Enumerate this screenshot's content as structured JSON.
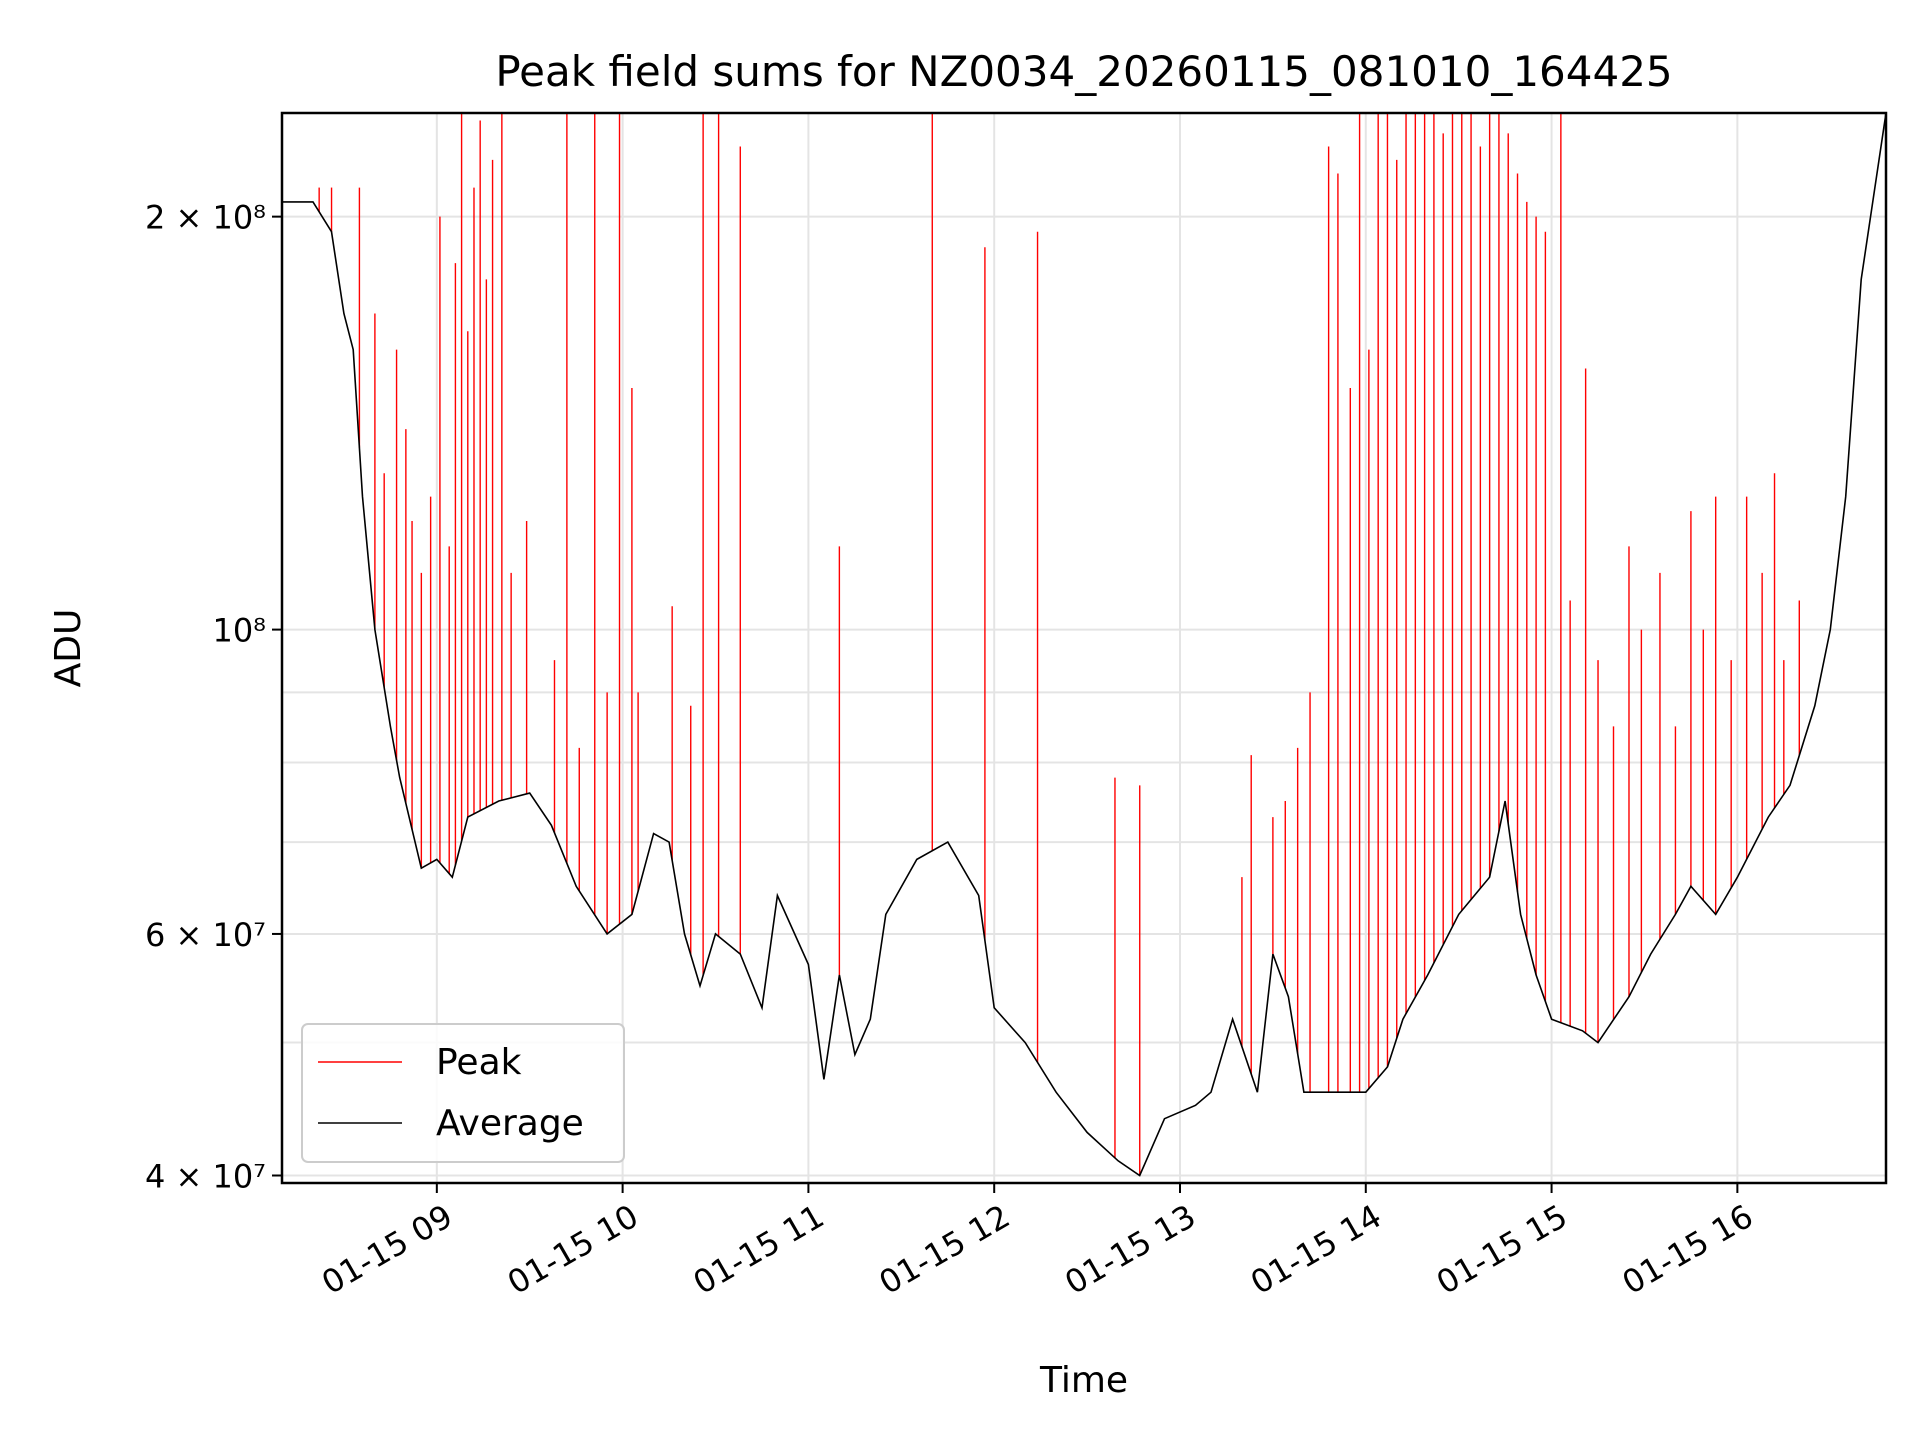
{
  "chart_data": {
    "type": "line",
    "title": "Peak field sums for NZ0034_20260115_081010_164425",
    "xlabel": "Time",
    "ylabel": "ADU",
    "y_scale": "log",
    "xlim": [
      "2026-01-15 08:10",
      "2026-01-15 16:48"
    ],
    "ylim": [
      39500000,
      238000000
    ],
    "grid": true,
    "legend_position": "lower-left",
    "x_ticks": [
      {
        "t": "2026-01-15 09:00",
        "label": "01-15 09"
      },
      {
        "t": "2026-01-15 10:00",
        "label": "01-15 10"
      },
      {
        "t": "2026-01-15 11:00",
        "label": "01-15 11"
      },
      {
        "t": "2026-01-15 12:00",
        "label": "01-15 12"
      },
      {
        "t": "2026-01-15 13:00",
        "label": "01-15 13"
      },
      {
        "t": "2026-01-15 14:00",
        "label": "01-15 14"
      },
      {
        "t": "2026-01-15 15:00",
        "label": "01-15 15"
      },
      {
        "t": "2026-01-15 16:00",
        "label": "01-15 16"
      }
    ],
    "y_ticks": [
      {
        "value": 40000000,
        "label": "4 × 10⁷"
      },
      {
        "value": 60000000,
        "label": "6 × 10⁷"
      },
      {
        "value": 100000000,
        "label": "10⁸"
      },
      {
        "value": 200000000,
        "label": "2 × 10⁸"
      }
    ],
    "y_minor_grid": [
      50000000,
      70000000,
      80000000,
      90000000
    ],
    "series": [
      {
        "name": "Average",
        "color": "#000000",
        "x": [
          "2026-01-15 08:10",
          "2026-01-15 08:20",
          "2026-01-15 08:26",
          "2026-01-15 08:30",
          "2026-01-15 08:33",
          "2026-01-15 08:36",
          "2026-01-15 08:40",
          "2026-01-15 08:45",
          "2026-01-15 08:48",
          "2026-01-15 08:55",
          "2026-01-15 09:00",
          "2026-01-15 09:05",
          "2026-01-15 09:10",
          "2026-01-15 09:20",
          "2026-01-15 09:30",
          "2026-01-15 09:37",
          "2026-01-15 09:45",
          "2026-01-15 09:55",
          "2026-01-15 10:03",
          "2026-01-15 10:10",
          "2026-01-15 10:15",
          "2026-01-15 10:20",
          "2026-01-15 10:25",
          "2026-01-15 10:30",
          "2026-01-15 10:38",
          "2026-01-15 10:45",
          "2026-01-15 10:50",
          "2026-01-15 11:00",
          "2026-01-15 11:05",
          "2026-01-15 11:10",
          "2026-01-15 11:15",
          "2026-01-15 11:20",
          "2026-01-15 11:25",
          "2026-01-15 11:35",
          "2026-01-15 11:45",
          "2026-01-15 11:55",
          "2026-01-15 12:00",
          "2026-01-15 12:10",
          "2026-01-15 12:20",
          "2026-01-15 12:30",
          "2026-01-15 12:40",
          "2026-01-15 12:47",
          "2026-01-15 12:55",
          "2026-01-15 13:05",
          "2026-01-15 13:10",
          "2026-01-15 13:17",
          "2026-01-15 13:25",
          "2026-01-15 13:30",
          "2026-01-15 13:35",
          "2026-01-15 13:40",
          "2026-01-15 13:50",
          "2026-01-15 14:00",
          "2026-01-15 14:07",
          "2026-01-15 14:12",
          "2026-01-15 14:20",
          "2026-01-15 14:30",
          "2026-01-15 14:40",
          "2026-01-15 14:45",
          "2026-01-15 14:50",
          "2026-01-15 14:55",
          "2026-01-15 15:00",
          "2026-01-15 15:10",
          "2026-01-15 15:15",
          "2026-01-15 15:25",
          "2026-01-15 15:32",
          "2026-01-15 15:40",
          "2026-01-15 15:45",
          "2026-01-15 15:53",
          "2026-01-15 16:00",
          "2026-01-15 16:10",
          "2026-01-15 16:17",
          "2026-01-15 16:25",
          "2026-01-15 16:30",
          "2026-01-15 16:35",
          "2026-01-15 16:40",
          "2026-01-15 16:48"
        ],
        "y": [
          205000000,
          205000000,
          195000000,
          170000000,
          160000000,
          125000000,
          100000000,
          85000000,
          78000000,
          67000000,
          68000000,
          66000000,
          73000000,
          75000000,
          76000000,
          72000000,
          65000000,
          60000000,
          62000000,
          71000000,
          70000000,
          60000000,
          55000000,
          60000000,
          58000000,
          53000000,
          64000000,
          57000000,
          47000000,
          56000000,
          49000000,
          52000000,
          62000000,
          68000000,
          70000000,
          64000000,
          53000000,
          50000000,
          46000000,
          43000000,
          41000000,
          40000000,
          44000000,
          45000000,
          46000000,
          52000000,
          46000000,
          58000000,
          54000000,
          46000000,
          46000000,
          46000000,
          48000000,
          52000000,
          56000000,
          62000000,
          66000000,
          75000000,
          62000000,
          56000000,
          52000000,
          51000000,
          50000000,
          54000000,
          58000000,
          62000000,
          65000000,
          62000000,
          66000000,
          73000000,
          77000000,
          88000000,
          100000000,
          125000000,
          180000000,
          238000000
        ]
      },
      {
        "name": "Peak",
        "color": "#ff0000",
        "spikes": [
          {
            "t": "2026-01-15 08:22",
            "y": 210000000
          },
          {
            "t": "2026-01-15 08:26",
            "y": 210000000
          },
          {
            "t": "2026-01-15 08:35",
            "y": 210000000
          },
          {
            "t": "2026-01-15 08:40",
            "y": 170000000
          },
          {
            "t": "2026-01-15 08:43",
            "y": 130000000
          },
          {
            "t": "2026-01-15 08:47",
            "y": 160000000
          },
          {
            "t": "2026-01-15 08:50",
            "y": 140000000
          },
          {
            "t": "2026-01-15 08:52",
            "y": 120000000
          },
          {
            "t": "2026-01-15 08:55",
            "y": 110000000
          },
          {
            "t": "2026-01-15 08:58",
            "y": 125000000
          },
          {
            "t": "2026-01-15 09:01",
            "y": 200000000
          },
          {
            "t": "2026-01-15 09:04",
            "y": 115000000
          },
          {
            "t": "2026-01-15 09:06",
            "y": 185000000
          },
          {
            "t": "2026-01-15 09:08",
            "y": 238000000
          },
          {
            "t": "2026-01-15 09:10",
            "y": 165000000
          },
          {
            "t": "2026-01-15 09:12",
            "y": 210000000
          },
          {
            "t": "2026-01-15 09:14",
            "y": 235000000
          },
          {
            "t": "2026-01-15 09:16",
            "y": 180000000
          },
          {
            "t": "2026-01-15 09:18",
            "y": 220000000
          },
          {
            "t": "2026-01-15 09:21",
            "y": 238000000
          },
          {
            "t": "2026-01-15 09:24",
            "y": 110000000
          },
          {
            "t": "2026-01-15 09:29",
            "y": 120000000
          },
          {
            "t": "2026-01-15 09:38",
            "y": 95000000
          },
          {
            "t": "2026-01-15 09:42",
            "y": 238000000
          },
          {
            "t": "2026-01-15 09:46",
            "y": 82000000
          },
          {
            "t": "2026-01-15 09:51",
            "y": 238000000
          },
          {
            "t": "2026-01-15 09:55",
            "y": 90000000
          },
          {
            "t": "2026-01-15 09:59",
            "y": 238000000
          },
          {
            "t": "2026-01-15 10:03",
            "y": 150000000
          },
          {
            "t": "2026-01-15 10:05",
            "y": 90000000
          },
          {
            "t": "2026-01-15 10:16",
            "y": 104000000
          },
          {
            "t": "2026-01-15 10:22",
            "y": 88000000
          },
          {
            "t": "2026-01-15 10:26",
            "y": 238000000
          },
          {
            "t": "2026-01-15 10:31",
            "y": 238000000
          },
          {
            "t": "2026-01-15 10:38",
            "y": 225000000
          },
          {
            "t": "2026-01-15 11:10",
            "y": 115000000
          },
          {
            "t": "2026-01-15 11:40",
            "y": 238000000
          },
          {
            "t": "2026-01-15 11:57",
            "y": 190000000
          },
          {
            "t": "2026-01-15 12:14",
            "y": 195000000
          },
          {
            "t": "2026-01-15 12:39",
            "y": 78000000
          },
          {
            "t": "2026-01-15 12:47",
            "y": 77000000
          },
          {
            "t": "2026-01-15 13:20",
            "y": 66000000
          },
          {
            "t": "2026-01-15 13:23",
            "y": 81000000
          },
          {
            "t": "2026-01-15 13:30",
            "y": 73000000
          },
          {
            "t": "2026-01-15 13:34",
            "y": 75000000
          },
          {
            "t": "2026-01-15 13:38",
            "y": 82000000
          },
          {
            "t": "2026-01-15 13:42",
            "y": 90000000
          },
          {
            "t": "2026-01-15 13:48",
            "y": 225000000
          },
          {
            "t": "2026-01-15 13:51",
            "y": 215000000
          },
          {
            "t": "2026-01-15 13:55",
            "y": 150000000
          },
          {
            "t": "2026-01-15 13:58",
            "y": 238000000
          },
          {
            "t": "2026-01-15 14:01",
            "y": 160000000
          },
          {
            "t": "2026-01-15 14:04",
            "y": 238000000
          },
          {
            "t": "2026-01-15 14:07",
            "y": 238000000
          },
          {
            "t": "2026-01-15 14:10",
            "y": 220000000
          },
          {
            "t": "2026-01-15 14:13",
            "y": 238000000
          },
          {
            "t": "2026-01-15 14:16",
            "y": 238000000
          },
          {
            "t": "2026-01-15 14:19",
            "y": 238000000
          },
          {
            "t": "2026-01-15 14:22",
            "y": 238000000
          },
          {
            "t": "2026-01-15 14:25",
            "y": 230000000
          },
          {
            "t": "2026-01-15 14:28",
            "y": 238000000
          },
          {
            "t": "2026-01-15 14:31",
            "y": 238000000
          },
          {
            "t": "2026-01-15 14:34",
            "y": 238000000
          },
          {
            "t": "2026-01-15 14:37",
            "y": 225000000
          },
          {
            "t": "2026-01-15 14:40",
            "y": 238000000
          },
          {
            "t": "2026-01-15 14:43",
            "y": 238000000
          },
          {
            "t": "2026-01-15 14:46",
            "y": 230000000
          },
          {
            "t": "2026-01-15 14:49",
            "y": 215000000
          },
          {
            "t": "2026-01-15 14:52",
            "y": 205000000
          },
          {
            "t": "2026-01-15 14:55",
            "y": 200000000
          },
          {
            "t": "2026-01-15 14:58",
            "y": 195000000
          },
          {
            "t": "2026-01-15 15:03",
            "y": 238000000
          },
          {
            "t": "2026-01-15 15:06",
            "y": 105000000
          },
          {
            "t": "2026-01-15 15:11",
            "y": 155000000
          },
          {
            "t": "2026-01-15 15:15",
            "y": 95000000
          },
          {
            "t": "2026-01-15 15:20",
            "y": 85000000
          },
          {
            "t": "2026-01-15 15:25",
            "y": 115000000
          },
          {
            "t": "2026-01-15 15:29",
            "y": 100000000
          },
          {
            "t": "2026-01-15 15:35",
            "y": 110000000
          },
          {
            "t": "2026-01-15 15:40",
            "y": 85000000
          },
          {
            "t": "2026-01-15 15:45",
            "y": 122000000
          },
          {
            "t": "2026-01-15 15:49",
            "y": 100000000
          },
          {
            "t": "2026-01-15 15:53",
            "y": 125000000
          },
          {
            "t": "2026-01-15 15:58",
            "y": 95000000
          },
          {
            "t": "2026-01-15 16:03",
            "y": 125000000
          },
          {
            "t": "2026-01-15 16:08",
            "y": 110000000
          },
          {
            "t": "2026-01-15 16:12",
            "y": 130000000
          },
          {
            "t": "2026-01-15 16:15",
            "y": 95000000
          },
          {
            "t": "2026-01-15 16:20",
            "y": 105000000
          }
        ]
      }
    ]
  },
  "legend": {
    "peak_label": "Peak",
    "average_label": "Average",
    "peak_color": "#ff0000",
    "average_color": "#000000"
  }
}
